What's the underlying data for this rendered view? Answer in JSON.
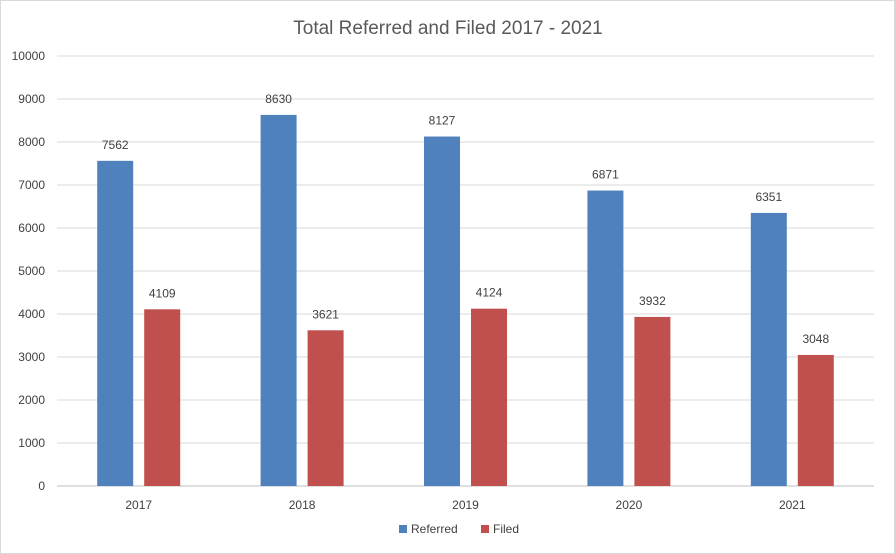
{
  "chart_data": {
    "type": "bar",
    "title": "Total Referred and Filed 2017 - 2021",
    "xlabel": "",
    "ylabel": "",
    "categories": [
      "2017",
      "2018",
      "2019",
      "2020",
      "2021"
    ],
    "series": [
      {
        "name": "Referred",
        "color": "#4f81bd",
        "values": [
          7562,
          8630,
          8127,
          6871,
          6351
        ]
      },
      {
        "name": "Filed",
        "color": "#c0504d",
        "values": [
          4109,
          3621,
          4124,
          3932,
          3048
        ]
      }
    ],
    "ylim": [
      0,
      10000
    ],
    "yticks": [
      "0",
      "1000",
      "2000",
      "3000",
      "4000",
      "5000",
      "6000",
      "7000",
      "8000",
      "9000",
      "10000"
    ],
    "grid": true,
    "legend": "bottom",
    "data_labels": true
  }
}
